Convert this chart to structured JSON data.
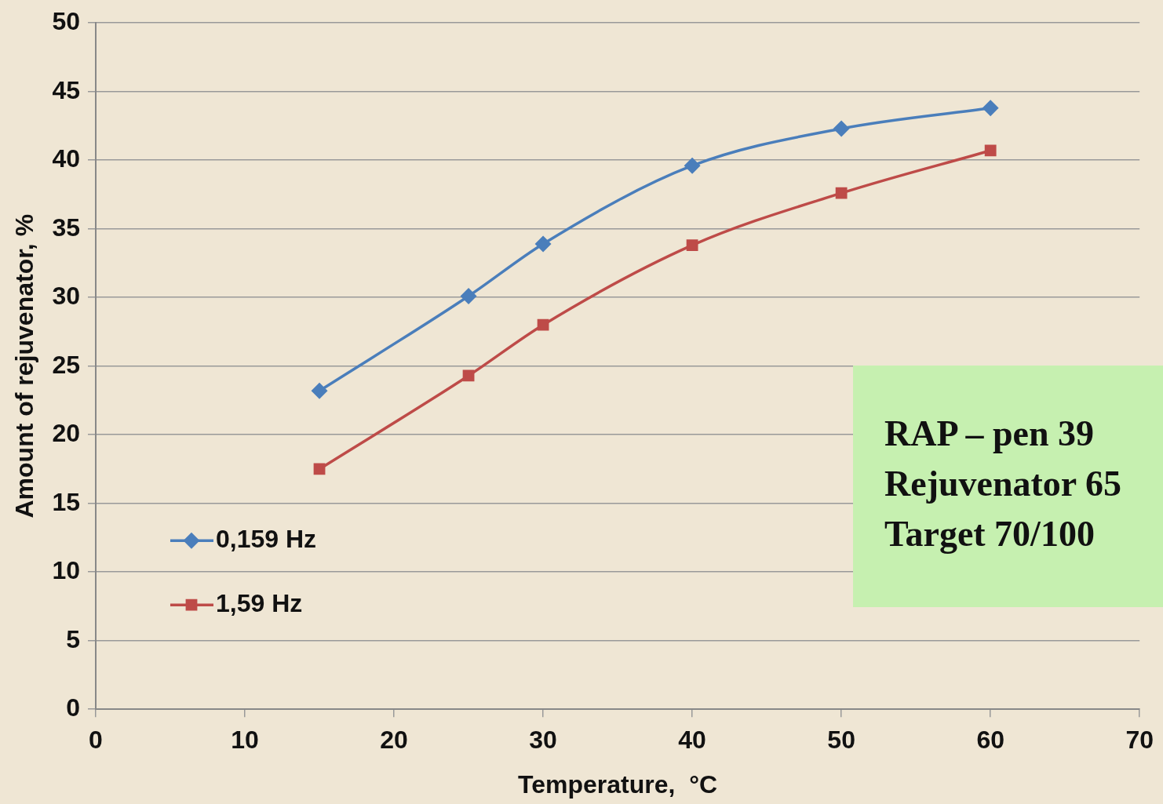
{
  "chart_data": {
    "type": "line",
    "xlabel": "Temperature,  °C",
    "ylabel": "Amount of rejuvenator, %",
    "xlim": [
      0,
      70
    ],
    "xticks": [
      0,
      10,
      20,
      30,
      40,
      50,
      60,
      70
    ],
    "ylim": [
      0,
      50
    ],
    "yticks": [
      0,
      5,
      10,
      15,
      20,
      25,
      30,
      35,
      40,
      45,
      50
    ],
    "grid": "y",
    "legend": "bottom left",
    "series": [
      {
        "name": "0,159 Hz",
        "color": "#4a7ebb",
        "marker": "diamond",
        "x": [
          15,
          25,
          30,
          40,
          50,
          60
        ],
        "values": [
          23.2,
          30.1,
          33.9,
          39.6,
          42.3,
          43.8
        ]
      },
      {
        "name": "1,59 Hz",
        "color": "#be4b48",
        "marker": "square",
        "x": [
          15,
          25,
          30,
          40,
          50,
          60
        ],
        "values": [
          17.5,
          24.3,
          28.0,
          33.8,
          37.6,
          40.7
        ]
      }
    ],
    "annotations": [
      "RAP – pen 39",
      "Rejuvenator 65",
      "Target 70/100"
    ]
  }
}
